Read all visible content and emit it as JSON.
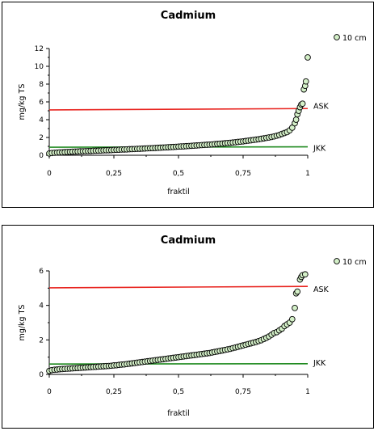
{
  "chart_data": [
    {
      "type": "scatter",
      "title": "Cadmium",
      "xlabel": "fraktil",
      "ylabel": "mg/kg TS",
      "xlim": [
        0,
        1
      ],
      "ylim": [
        0,
        12
      ],
      "x_ticks": [
        0,
        0.25,
        0.5,
        0.75,
        1
      ],
      "x_tick_labels": [
        "0",
        "0,25",
        "0,5",
        "0,75",
        "1"
      ],
      "y_ticks": [
        0,
        2,
        4,
        6,
        8,
        10,
        12
      ],
      "y_tick_labels": [
        "0",
        "2",
        "4",
        "6",
        "8",
        "10",
        "12"
      ],
      "legend": {
        "position": "top-right",
        "entries": [
          "10 cm"
        ]
      },
      "reference_lines": [
        {
          "label": "ASK",
          "y_start": 5.1,
          "y_end": 5.25,
          "color": "#e8231e"
        },
        {
          "label": "JKK",
          "y_start": 0.9,
          "y_end": 0.95,
          "color": "#1f8a1f"
        }
      ],
      "series": [
        {
          "name": "10 cm",
          "marker_fill": "#d4f0c8",
          "marker_edge": "#000000",
          "points": [
            [
              0.0,
              0.2
            ],
            [
              0.01,
              0.25
            ],
            [
              0.02,
              0.28
            ],
            [
              0.03,
              0.3
            ],
            [
              0.04,
              0.32
            ],
            [
              0.05,
              0.33
            ],
            [
              0.06,
              0.35
            ],
            [
              0.07,
              0.37
            ],
            [
              0.08,
              0.38
            ],
            [
              0.09,
              0.4
            ],
            [
              0.1,
              0.41
            ],
            [
              0.11,
              0.42
            ],
            [
              0.12,
              0.44
            ],
            [
              0.13,
              0.45
            ],
            [
              0.14,
              0.46
            ],
            [
              0.15,
              0.47
            ],
            [
              0.16,
              0.48
            ],
            [
              0.17,
              0.5
            ],
            [
              0.18,
              0.51
            ],
            [
              0.19,
              0.52
            ],
            [
              0.2,
              0.53
            ],
            [
              0.21,
              0.55
            ],
            [
              0.22,
              0.56
            ],
            [
              0.23,
              0.57
            ],
            [
              0.24,
              0.58
            ],
            [
              0.25,
              0.6
            ],
            [
              0.26,
              0.61
            ],
            [
              0.27,
              0.62
            ],
            [
              0.28,
              0.64
            ],
            [
              0.29,
              0.65
            ],
            [
              0.3,
              0.66
            ],
            [
              0.31,
              0.68
            ],
            [
              0.32,
              0.69
            ],
            [
              0.33,
              0.7
            ],
            [
              0.34,
              0.72
            ],
            [
              0.35,
              0.73
            ],
            [
              0.36,
              0.75
            ],
            [
              0.37,
              0.76
            ],
            [
              0.38,
              0.78
            ],
            [
              0.39,
              0.79
            ],
            [
              0.4,
              0.8
            ],
            [
              0.41,
              0.82
            ],
            [
              0.42,
              0.84
            ],
            [
              0.43,
              0.85
            ],
            [
              0.44,
              0.87
            ],
            [
              0.45,
              0.88
            ],
            [
              0.46,
              0.9
            ],
            [
              0.47,
              0.92
            ],
            [
              0.48,
              0.93
            ],
            [
              0.49,
              0.95
            ],
            [
              0.5,
              0.97
            ],
            [
              0.51,
              0.99
            ],
            [
              0.52,
              1.0
            ],
            [
              0.53,
              1.02
            ],
            [
              0.54,
              1.04
            ],
            [
              0.55,
              1.06
            ],
            [
              0.56,
              1.08
            ],
            [
              0.57,
              1.1
            ],
            [
              0.58,
              1.12
            ],
            [
              0.59,
              1.14
            ],
            [
              0.6,
              1.16
            ],
            [
              0.61,
              1.18
            ],
            [
              0.62,
              1.2
            ],
            [
              0.63,
              1.22
            ],
            [
              0.64,
              1.25
            ],
            [
              0.65,
              1.27
            ],
            [
              0.66,
              1.3
            ],
            [
              0.67,
              1.32
            ],
            [
              0.68,
              1.35
            ],
            [
              0.69,
              1.38
            ],
            [
              0.7,
              1.4
            ],
            [
              0.71,
              1.43
            ],
            [
              0.72,
              1.46
            ],
            [
              0.73,
              1.5
            ],
            [
              0.74,
              1.53
            ],
            [
              0.75,
              1.56
            ],
            [
              0.76,
              1.6
            ],
            [
              0.77,
              1.64
            ],
            [
              0.78,
              1.68
            ],
            [
              0.79,
              1.72
            ],
            [
              0.8,
              1.76
            ],
            [
              0.81,
              1.8
            ],
            [
              0.82,
              1.85
            ],
            [
              0.83,
              1.9
            ],
            [
              0.84,
              1.95
            ],
            [
              0.85,
              2.0
            ],
            [
              0.86,
              2.05
            ],
            [
              0.87,
              2.12
            ],
            [
              0.88,
              2.2
            ],
            [
              0.89,
              2.28
            ],
            [
              0.9,
              2.4
            ],
            [
              0.91,
              2.5
            ],
            [
              0.92,
              2.6
            ],
            [
              0.93,
              2.8
            ],
            [
              0.94,
              3.1
            ],
            [
              0.95,
              3.6
            ],
            [
              0.955,
              4.0
            ],
            [
              0.96,
              4.6
            ],
            [
              0.965,
              5.0
            ],
            [
              0.97,
              5.4
            ],
            [
              0.975,
              5.7
            ],
            [
              0.98,
              5.8
            ],
            [
              0.985,
              7.4
            ],
            [
              0.99,
              7.8
            ],
            [
              0.993,
              8.3
            ],
            [
              1.0,
              11.0
            ]
          ]
        }
      ]
    },
    {
      "type": "scatter",
      "title": "Cadmium",
      "xlabel": "fraktil",
      "ylabel": "mg/kg TS",
      "xlim": [
        0,
        1
      ],
      "ylim": [
        0,
        6
      ],
      "x_ticks": [
        0,
        0.25,
        0.5,
        0.75,
        1
      ],
      "x_tick_labels": [
        "0",
        "0,25",
        "0,5",
        "0,75",
        "1"
      ],
      "y_ticks": [
        0,
        2,
        4,
        6
      ],
      "y_tick_labels": [
        "0",
        "2",
        "4",
        "6"
      ],
      "legend": {
        "position": "top-right",
        "entries": [
          "10 cm"
        ]
      },
      "reference_lines": [
        {
          "label": "ASK",
          "y_start": 5.02,
          "y_end": 5.1,
          "color": "#e8231e"
        },
        {
          "label": "JKK",
          "y_start": 0.6,
          "y_end": 0.62,
          "color": "#1f8a1f"
        }
      ],
      "series": [
        {
          "name": "10 cm",
          "marker_fill": "#d4f0c8",
          "marker_edge": "#000000",
          "points": [
            [
              0.0,
              0.2
            ],
            [
              0.01,
              0.25
            ],
            [
              0.02,
              0.27
            ],
            [
              0.03,
              0.28
            ],
            [
              0.04,
              0.3
            ],
            [
              0.05,
              0.31
            ],
            [
              0.06,
              0.32
            ],
            [
              0.07,
              0.33
            ],
            [
              0.08,
              0.34
            ],
            [
              0.09,
              0.35
            ],
            [
              0.1,
              0.36
            ],
            [
              0.11,
              0.37
            ],
            [
              0.12,
              0.38
            ],
            [
              0.13,
              0.39
            ],
            [
              0.14,
              0.4
            ],
            [
              0.15,
              0.41
            ],
            [
              0.16,
              0.42
            ],
            [
              0.17,
              0.43
            ],
            [
              0.18,
              0.44
            ],
            [
              0.19,
              0.45
            ],
            [
              0.2,
              0.46
            ],
            [
              0.21,
              0.47
            ],
            [
              0.22,
              0.48
            ],
            [
              0.23,
              0.49
            ],
            [
              0.24,
              0.5
            ],
            [
              0.25,
              0.52
            ],
            [
              0.26,
              0.53
            ],
            [
              0.27,
              0.55
            ],
            [
              0.28,
              0.57
            ],
            [
              0.29,
              0.58
            ],
            [
              0.3,
              0.6
            ],
            [
              0.31,
              0.62
            ],
            [
              0.32,
              0.64
            ],
            [
              0.33,
              0.66
            ],
            [
              0.34,
              0.68
            ],
            [
              0.35,
              0.7
            ],
            [
              0.36,
              0.72
            ],
            [
              0.37,
              0.74
            ],
            [
              0.38,
              0.76
            ],
            [
              0.39,
              0.78
            ],
            [
              0.4,
              0.8
            ],
            [
              0.41,
              0.82
            ],
            [
              0.42,
              0.84
            ],
            [
              0.43,
              0.86
            ],
            [
              0.44,
              0.88
            ],
            [
              0.45,
              0.9
            ],
            [
              0.46,
              0.92
            ],
            [
              0.47,
              0.94
            ],
            [
              0.48,
              0.96
            ],
            [
              0.49,
              0.98
            ],
            [
              0.5,
              1.0
            ],
            [
              0.51,
              1.02
            ],
            [
              0.52,
              1.04
            ],
            [
              0.53,
              1.06
            ],
            [
              0.54,
              1.08
            ],
            [
              0.55,
              1.1
            ],
            [
              0.56,
              1.12
            ],
            [
              0.57,
              1.14
            ],
            [
              0.58,
              1.16
            ],
            [
              0.59,
              1.18
            ],
            [
              0.6,
              1.2
            ],
            [
              0.61,
              1.22
            ],
            [
              0.62,
              1.24
            ],
            [
              0.63,
              1.27
            ],
            [
              0.64,
              1.3
            ],
            [
              0.65,
              1.33
            ],
            [
              0.66,
              1.36
            ],
            [
              0.67,
              1.39
            ],
            [
              0.68,
              1.42
            ],
            [
              0.69,
              1.45
            ],
            [
              0.7,
              1.48
            ],
            [
              0.71,
              1.52
            ],
            [
              0.72,
              1.56
            ],
            [
              0.73,
              1.6
            ],
            [
              0.74,
              1.64
            ],
            [
              0.75,
              1.68
            ],
            [
              0.76,
              1.72
            ],
            [
              0.77,
              1.76
            ],
            [
              0.78,
              1.8
            ],
            [
              0.79,
              1.84
            ],
            [
              0.8,
              1.88
            ],
            [
              0.81,
              1.93
            ],
            [
              0.82,
              1.98
            ],
            [
              0.83,
              2.05
            ],
            [
              0.84,
              2.12
            ],
            [
              0.85,
              2.2
            ],
            [
              0.86,
              2.3
            ],
            [
              0.87,
              2.4
            ],
            [
              0.88,
              2.45
            ],
            [
              0.89,
              2.55
            ],
            [
              0.9,
              2.65
            ],
            [
              0.91,
              2.8
            ],
            [
              0.92,
              2.9
            ],
            [
              0.93,
              3.0
            ],
            [
              0.94,
              3.2
            ],
            [
              0.95,
              3.85
            ],
            [
              0.955,
              4.7
            ],
            [
              0.96,
              4.8
            ],
            [
              0.97,
              5.5
            ],
            [
              0.975,
              5.65
            ],
            [
              0.98,
              5.75
            ],
            [
              0.99,
              5.8
            ]
          ]
        }
      ]
    }
  ]
}
